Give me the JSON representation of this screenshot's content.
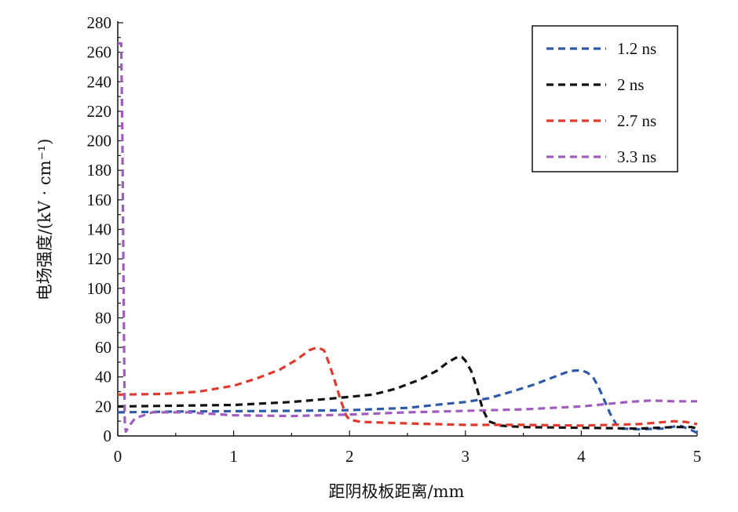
{
  "chart_data": {
    "type": "line",
    "xlabel": "距阴极板距离/mm",
    "ylabel": "电场强度/(kV · cm⁻¹)",
    "xlim": [
      0,
      5
    ],
    "ylim": [
      0,
      280
    ],
    "x_ticks": [
      "0",
      "1",
      "2",
      "3",
      "4",
      "5"
    ],
    "y_ticks": [
      "0",
      "20",
      "40",
      "60",
      "80",
      "100",
      "120",
      "140",
      "160",
      "180",
      "200",
      "220",
      "240",
      "260",
      "280"
    ],
    "legend_position": "top-right",
    "grid": false,
    "series": [
      {
        "name": "1.2 ns",
        "color": "#2f5aa8",
        "points": [
          [
            0,
            16
          ],
          [
            0.5,
            16.5
          ],
          [
            1,
            16.8
          ],
          [
            1.5,
            17
          ],
          [
            2,
            17.5
          ],
          [
            2.5,
            19
          ],
          [
            2.8,
            21.5
          ],
          [
            3,
            23
          ],
          [
            3.2,
            25.5
          ],
          [
            3.4,
            30
          ],
          [
            3.6,
            35
          ],
          [
            3.8,
            41
          ],
          [
            3.9,
            44
          ],
          [
            4.0,
            44.5
          ],
          [
            4.05,
            43
          ],
          [
            4.1,
            40
          ],
          [
            4.15,
            33
          ],
          [
            4.2,
            24
          ],
          [
            4.25,
            15
          ],
          [
            4.3,
            8
          ],
          [
            4.35,
            5
          ],
          [
            4.5,
            4.5
          ],
          [
            4.7,
            5
          ],
          [
            4.85,
            7
          ],
          [
            4.95,
            4
          ],
          [
            5,
            2
          ]
        ]
      },
      {
        "name": "2 ns",
        "color": "#111111",
        "points": [
          [
            0,
            20
          ],
          [
            0.5,
            20.5
          ],
          [
            1,
            21
          ],
          [
            1.5,
            23
          ],
          [
            1.8,
            25
          ],
          [
            2,
            26.5
          ],
          [
            2.2,
            28
          ],
          [
            2.4,
            32
          ],
          [
            2.6,
            38
          ],
          [
            2.75,
            44
          ],
          [
            2.85,
            50
          ],
          [
            2.92,
            53
          ],
          [
            2.97,
            53.5
          ],
          [
            3.0,
            51
          ],
          [
            3.05,
            44
          ],
          [
            3.1,
            32
          ],
          [
            3.15,
            18
          ],
          [
            3.2,
            10
          ],
          [
            3.3,
            7
          ],
          [
            3.5,
            6
          ],
          [
            4,
            5.5
          ],
          [
            4.5,
            5
          ],
          [
            4.8,
            6
          ],
          [
            4.95,
            6
          ],
          [
            5,
            5
          ]
        ]
      },
      {
        "name": "2.7 ns",
        "color": "#e03a2f",
        "points": [
          [
            0,
            28
          ],
          [
            0.4,
            28.5
          ],
          [
            0.7,
            30
          ],
          [
            1.0,
            34
          ],
          [
            1.2,
            39
          ],
          [
            1.4,
            45
          ],
          [
            1.55,
            52
          ],
          [
            1.65,
            58
          ],
          [
            1.72,
            60
          ],
          [
            1.78,
            58
          ],
          [
            1.82,
            50
          ],
          [
            1.87,
            38
          ],
          [
            1.92,
            25
          ],
          [
            1.97,
            14
          ],
          [
            2.0,
            11
          ],
          [
            2.1,
            9.5
          ],
          [
            2.5,
            8.5
          ],
          [
            3,
            7.5
          ],
          [
            3.5,
            7.5
          ],
          [
            4,
            7
          ],
          [
            4.5,
            8
          ],
          [
            4.8,
            10
          ],
          [
            4.9,
            9.5
          ],
          [
            5,
            8
          ]
        ]
      },
      {
        "name": "3.3 ns",
        "color": "#a15cc0",
        "points": [
          [
            0,
            266
          ],
          [
            0.03,
            266
          ],
          [
            0.04,
            200
          ],
          [
            0.05,
            100
          ],
          [
            0.06,
            10
          ],
          [
            0.07,
            3
          ],
          [
            0.1,
            7
          ],
          [
            0.15,
            12
          ],
          [
            0.3,
            16
          ],
          [
            0.6,
            16
          ],
          [
            1.0,
            14
          ],
          [
            1.5,
            13.5
          ],
          [
            2.0,
            14.5
          ],
          [
            2.5,
            16
          ],
          [
            3,
            17
          ],
          [
            3.5,
            18
          ],
          [
            4,
            20
          ],
          [
            4.4,
            23
          ],
          [
            4.6,
            24
          ],
          [
            4.8,
            23.5
          ],
          [
            5,
            23.5
          ]
        ]
      }
    ]
  }
}
